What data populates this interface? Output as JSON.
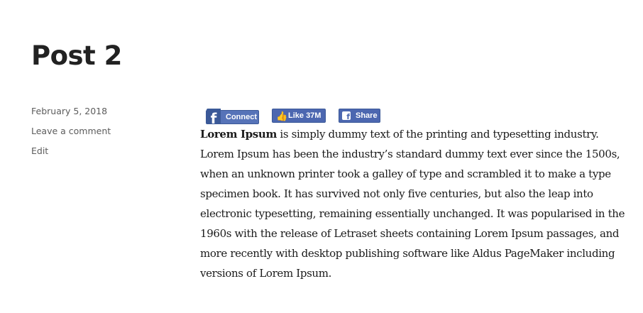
{
  "post": {
    "title": "Post 2",
    "date": "February 5, 2018",
    "comment_link": "Leave a comment",
    "edit_link": "Edit"
  },
  "social": {
    "connect_label": "Connect",
    "connect_icon": "facebook-f-icon",
    "like_label": "Like 37M",
    "like_icon": "thumbs-up-icon",
    "share_label": "Share",
    "share_icon": "facebook-square-icon",
    "brand_color": "#4c67b0"
  },
  "content": {
    "lead_bold": "Lorem Ipsum",
    "body": " is simply dummy text of the printing and typesetting industry. Lorem Ipsum has been the industry’s standard dummy text ever since the 1500s, when an unknown printer took a galley of type and scrambled it to make a type specimen book. It has survived not only five centuries, but also the leap into electronic typesetting, remaining essentially unchanged. It was popularised in the 1960s with the release of Letraset sheets containing Lorem Ipsum passages, and more recently with desktop publishing software like Aldus PageMaker including versions of Lorem Ipsum."
  }
}
